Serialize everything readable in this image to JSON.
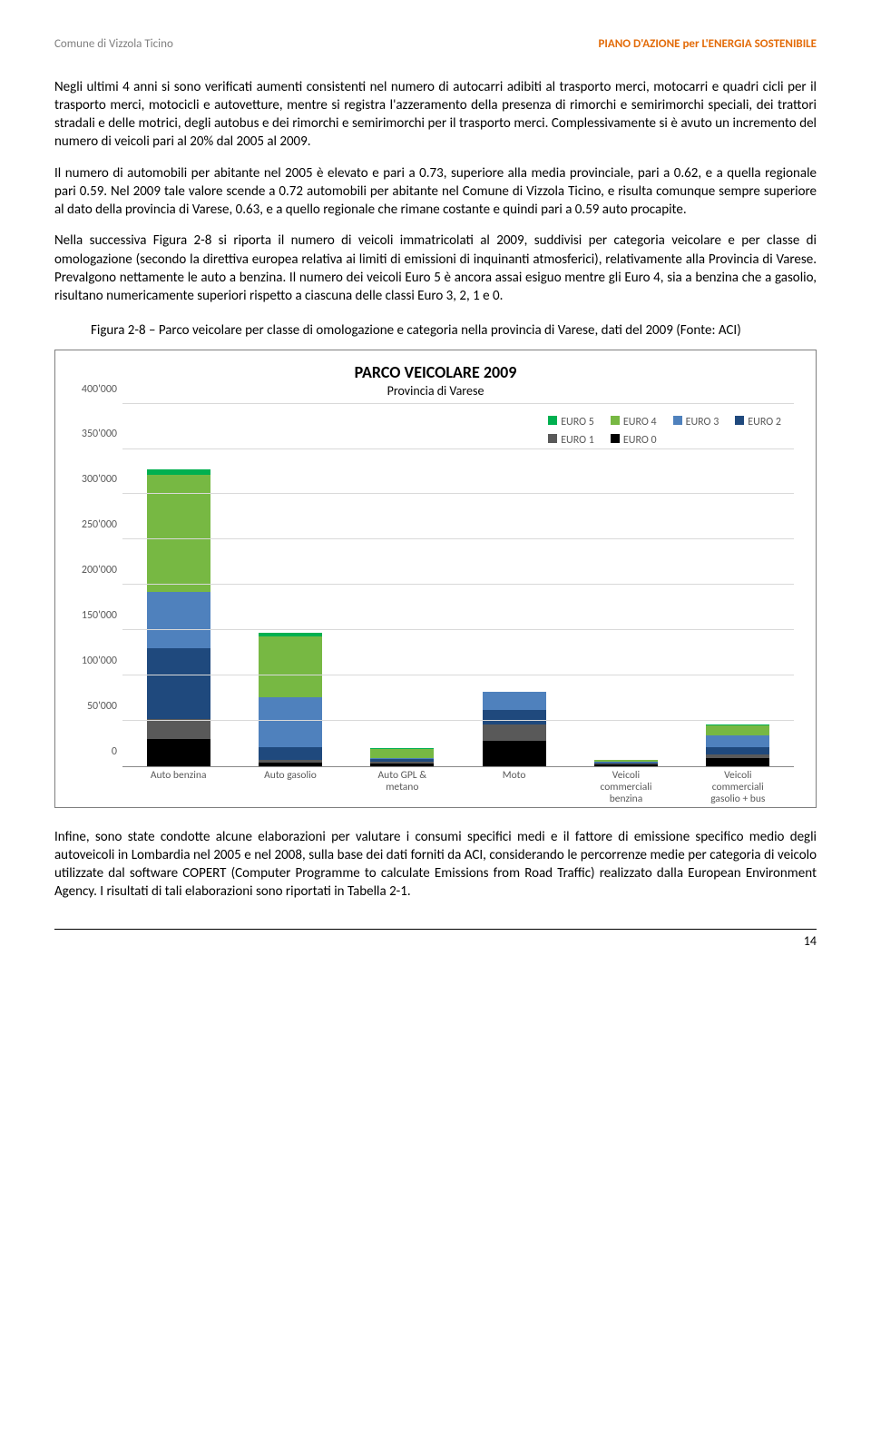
{
  "header": {
    "left": "Comune di Vizzola Ticino",
    "right": "PIANO D'AZIONE per L'ENERGIA SOSTENIBILE"
  },
  "paragraphs": {
    "p1": "Negli ultimi 4 anni si sono verificati aumenti consistenti nel numero di autocarri adibiti al trasporto merci, motocarri e quadri cicli per il trasporto merci, motocicli e autovetture, mentre si registra l'azzeramento della presenza di rimorchi e semirimorchi speciali, dei trattori stradali e delle motrici, degli autobus e dei rimorchi e semirimorchi per il trasporto merci. Complessivamente si è avuto un incremento del numero di veicoli pari al 20% dal 2005 al 2009.",
    "p2": "Il numero di automobili per abitante nel 2005 è elevato e pari a 0.73, superiore alla media provinciale, pari a 0.62, e a quella regionale pari 0.59. Nel 2009 tale valore scende a 0.72 automobili per abitante nel Comune di Vizzola Ticino, e risulta comunque sempre superiore al dato della provincia di Varese, 0.63, e a quello regionale che rimane costante e quindi pari a 0.59 auto procapite.",
    "p3": "Nella successiva Figura 2-8 si riporta il numero di veicoli immatricolati al 2009, suddivisi per categoria veicolare e per classe di omologazione (secondo la direttiva europea relativa ai limiti di emissioni di inquinanti atmosferici), relativamente alla Provincia di Varese. Prevalgono nettamente le auto a benzina. Il numero dei veicoli Euro 5 è ancora assai esiguo mentre gli Euro 4, sia a benzina che a gasolio, risultano numericamente superiori rispetto a ciascuna delle classi Euro 3, 2, 1 e 0.",
    "p4": "Infine, sono state condotte alcune elaborazioni per valutare i consumi specifici medi e il fattore di emissione specifico medio degli autoveicoli in Lombardia nel 2005 e nel 2008, sulla base dei dati forniti da ACI, considerando le percorrenze medie per categoria di veicolo utilizzate dal software COPERT (Computer Programme to calculate Emissions from Road Traffic) realizzato dalla European Environment Agency. I risultati di tali elaborazioni sono riportati in Tabella 2-1."
  },
  "figure_caption": "Figura 2-8 – Parco veicolare per classe di omologazione e categoria nella provincia di Varese, dati del 2009 (Fonte: ACI)",
  "chart": {
    "title": "PARCO VEICOLARE 2009",
    "subtitle": "Provincia di Varese",
    "ymax": 400000,
    "ytick_step": 50000,
    "yticks": [
      "0",
      "50'000",
      "100'000",
      "150'000",
      "200'000",
      "250'000",
      "300'000",
      "350'000",
      "400'000"
    ],
    "series_colors": {
      "EURO 0": "#000000",
      "EURO 1": "#595959",
      "EURO 2": "#1f497d",
      "EURO 3": "#4f81bd",
      "EURO 4": "#77b843",
      "EURO 5": "#00b050"
    },
    "legend_order": [
      "EURO 5",
      "EURO 4",
      "EURO 3",
      "EURO 2",
      "EURO 1",
      "EURO 0"
    ],
    "stack_order": [
      "EURO 0",
      "EURO 1",
      "EURO 2",
      "EURO 3",
      "EURO 4",
      "EURO 5"
    ],
    "categories": [
      {
        "label": "Auto benzina",
        "values": {
          "EURO 0": 30000,
          "EURO 1": 22000,
          "EURO 2": 78000,
          "EURO 3": 62000,
          "EURO 4": 130000,
          "EURO 5": 6000
        }
      },
      {
        "label": "Auto gasolio",
        "values": {
          "EURO 0": 3500,
          "EURO 1": 3000,
          "EURO 2": 14000,
          "EURO 3": 55000,
          "EURO 4": 68000,
          "EURO 5": 4000
        }
      },
      {
        "label": "Auto GPL & metano",
        "values": {
          "EURO 0": 3000,
          "EURO 1": 1500,
          "EURO 2": 3000,
          "EURO 3": 1500,
          "EURO 4": 10000,
          "EURO 5": 500
        }
      },
      {
        "label": "Moto",
        "values": {
          "EURO 0": 28000,
          "EURO 1": 18000,
          "EURO 2": 16000,
          "EURO 3": 20000,
          "EURO 4": 0,
          "EURO 5": 0
        }
      },
      {
        "label": "Veicoli commerciali benzina",
        "values": {
          "EURO 0": 2000,
          "EURO 1": 800,
          "EURO 2": 1200,
          "EURO 3": 800,
          "EURO 4": 1500,
          "EURO 5": 200
        }
      },
      {
        "label": "Veicoli commerciali gasolio + bus",
        "values": {
          "EURO 0": 9000,
          "EURO 1": 4000,
          "EURO 2": 8000,
          "EURO 3": 13000,
          "EURO 4": 11000,
          "EURO 5": 1000
        }
      }
    ]
  },
  "page_number": "14"
}
